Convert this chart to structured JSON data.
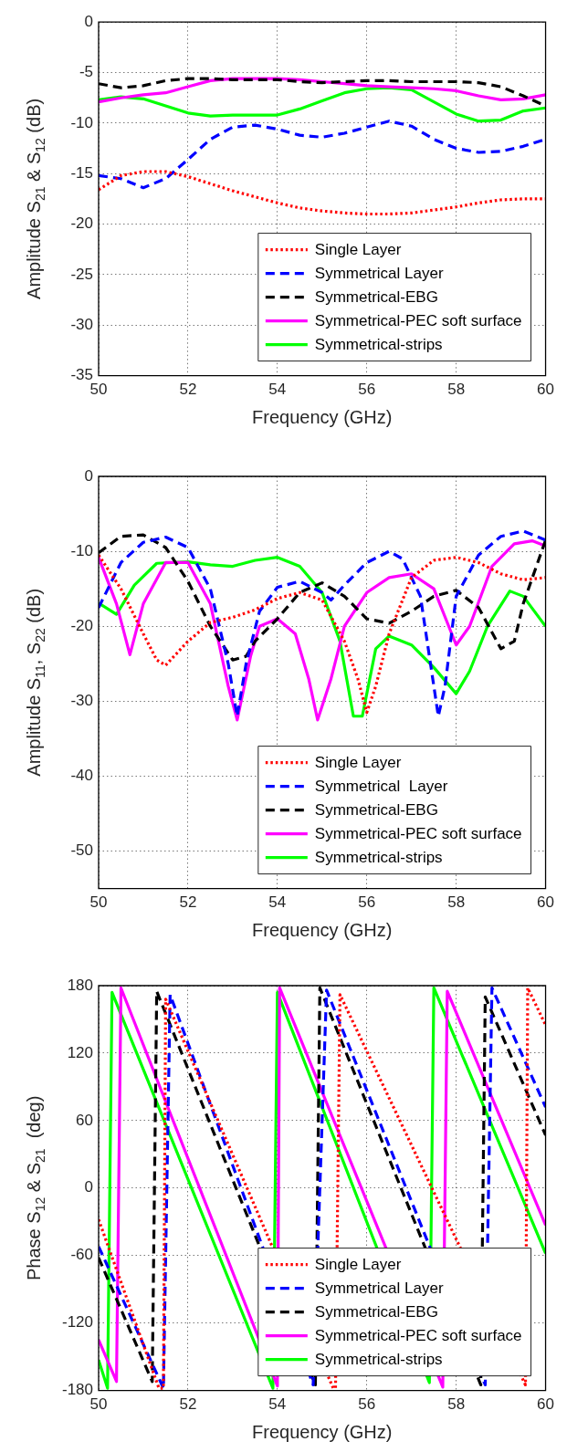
{
  "chart_data": [
    {
      "type": "line",
      "xlabel": "Frequency (GHz)",
      "ylabel": "Amplitude S$_{21}$ & S$_{12}$ (dB)",
      "xlim": [
        50,
        60
      ],
      "xticks": [
        50,
        52,
        54,
        56,
        58,
        60
      ],
      "ylim": [
        -35,
        0
      ],
      "yticks": [
        -35,
        -30,
        -25,
        -20,
        -15,
        -10,
        -5,
        0
      ],
      "grid": true,
      "legend": "bottom right",
      "x": [
        50,
        50.5,
        51,
        51.5,
        52,
        52.5,
        53,
        53.5,
        54,
        54.5,
        55,
        55.5,
        56,
        56.5,
        57,
        57.5,
        58,
        58.5,
        59,
        59.5,
        60
      ],
      "series": [
        {
          "name": "Single Layer",
          "color": "#ff0000",
          "line_style": "dotted",
          "values": [
            -16.6,
            -15.2,
            -14.8,
            -14.8,
            -15.3,
            -16,
            -16.7,
            -17.3,
            -17.9,
            -18.4,
            -18.7,
            -18.9,
            -19,
            -19,
            -18.9,
            -18.6,
            -18.3,
            -17.9,
            -17.6,
            -17.5,
            -17.5
          ]
        },
        {
          "name": "Symmetrical Layer",
          "color": "#0000ff",
          "line_style": "dashed",
          "values": [
            -15.2,
            -15.5,
            -16.4,
            -15.5,
            -13.6,
            -11.6,
            -10.4,
            -10.2,
            -10.6,
            -11.2,
            -11.4,
            -11,
            -10.4,
            -9.8,
            -10.3,
            -11.6,
            -12.5,
            -12.9,
            -12.8,
            -12.3,
            -11.6
          ]
        },
        {
          "name": "Symmetrical-EBG",
          "color": "#000000",
          "line_style": "dashed",
          "values": [
            -6.1,
            -6.5,
            -6.3,
            -5.8,
            -5.6,
            -5.6,
            -5.7,
            -5.7,
            -5.7,
            -5.9,
            -6,
            -5.9,
            -5.8,
            -5.8,
            -5.9,
            -5.9,
            -5.9,
            -6,
            -6.4,
            -7.3,
            -8.3
          ]
        },
        {
          "name": "Symmetrical-PEC soft surface",
          "color": "#ff00ff",
          "line_style": "solid",
          "values": [
            -7.9,
            -7.5,
            -7.2,
            -7,
            -6.4,
            -5.8,
            -5.6,
            -5.6,
            -5.6,
            -5.7,
            -5.9,
            -6.1,
            -6.3,
            -6.4,
            -6.5,
            -6.6,
            -6.8,
            -7.3,
            -7.7,
            -7.6,
            -7.2
          ]
        },
        {
          "name": "Symmetrical-strips",
          "color": "#00ff00",
          "line_style": "solid",
          "values": [
            -7.7,
            -7.4,
            -7.6,
            -8.3,
            -9,
            -9.3,
            -9.2,
            -9.2,
            -9.2,
            -8.6,
            -7.8,
            -7,
            -6.6,
            -6.5,
            -6.7,
            -7.9,
            -9.1,
            -9.8,
            -9.7,
            -8.8,
            -8.5
          ]
        }
      ]
    },
    {
      "type": "line",
      "xlabel": "Frequency (GHz)",
      "ylabel": "Amplitude S$_{11}$, S$_{22}$ (dB)",
      "xlim": [
        50,
        60
      ],
      "xticks": [
        50,
        52,
        54,
        56,
        58,
        60
      ],
      "ylim": [
        -55,
        0
      ],
      "yticks": [
        -50,
        -40,
        -30,
        -20,
        -10,
        0
      ],
      "grid": true,
      "legend": "bottom right",
      "series": [
        {
          "name": "Single Layer",
          "color": "#ff0000",
          "line_style": "dotted",
          "x": [
            50,
            50.5,
            51,
            51.3,
            51.5,
            52,
            52.5,
            53,
            53.5,
            54,
            54.5,
            55,
            55.5,
            55.8,
            56,
            56.2,
            56.5,
            57,
            57.5,
            58,
            58.5,
            59,
            59.5,
            60
          ],
          "values": [
            -10.5,
            -15,
            -21,
            -24.5,
            -25.2,
            -22,
            -19.5,
            -18.8,
            -17.8,
            -16.3,
            -15.5,
            -16.5,
            -22,
            -27,
            -31.5,
            -28,
            -21,
            -13.5,
            -11.2,
            -10.8,
            -11.5,
            -13,
            -13.8,
            -13.5
          ]
        },
        {
          "name": "Symmetrical  Layer",
          "color": "#0000ff",
          "line_style": "dashed",
          "x": [
            50,
            50.5,
            51,
            51.5,
            52,
            52.5,
            52.9,
            53.1,
            53.3,
            53.6,
            54,
            54.5,
            55,
            55.2,
            55.5,
            56,
            56.5,
            56.8,
            57.2,
            57.5,
            57.6,
            57.75,
            58,
            58.5,
            59,
            59.5,
            60
          ],
          "values": [
            -17.5,
            -11.5,
            -8.8,
            -8.1,
            -9.5,
            -15,
            -25,
            -32,
            -25,
            -18,
            -14.8,
            -14,
            -15.5,
            -16.5,
            -14.5,
            -11.5,
            -10,
            -11,
            -16,
            -28,
            -32,
            -28,
            -16,
            -10.5,
            -8,
            -7.3,
            -8.5
          ]
        },
        {
          "name": "Symmetrical-EBG",
          "color": "#000000",
          "line_style": "dashed",
          "x": [
            50,
            50.5,
            51,
            51.5,
            52,
            52.5,
            53,
            53.3,
            53.5,
            54,
            54.5,
            55,
            55.5,
            56,
            56.5,
            57,
            57.5,
            58,
            58.5,
            59,
            59.3,
            59.5,
            60
          ],
          "values": [
            -10.2,
            -8,
            -7.8,
            -9.5,
            -14,
            -20,
            -24.5,
            -24,
            -22,
            -19,
            -15.5,
            -14.2,
            -16,
            -19,
            -19.6,
            -18,
            -16,
            -15.2,
            -17.5,
            -23,
            -22,
            -17,
            -8.5
          ]
        },
        {
          "name": "Symmetrical-PEC soft surface",
          "color": "#ff00ff",
          "line_style": "solid",
          "x": [
            50,
            50.4,
            50.7,
            51,
            51.5,
            52,
            52.5,
            52.9,
            53.1,
            53.4,
            53.6,
            54,
            54.4,
            54.7,
            54.9,
            55.2,
            55.5,
            56,
            56.5,
            57,
            57.5,
            58,
            58.3,
            58.8,
            59.3,
            59.7,
            60
          ],
          "values": [
            -10.8,
            -17,
            -23.8,
            -17,
            -11.5,
            -11.5,
            -17,
            -28,
            -32.5,
            -24,
            -20,
            -19,
            -21,
            -27,
            -32.5,
            -27,
            -20,
            -15.5,
            -13.5,
            -13,
            -15,
            -22.5,
            -20,
            -12,
            -9,
            -8.6,
            -9.3
          ]
        },
        {
          "name": "Symmetrical-strips",
          "color": "#00ff00",
          "line_style": "solid",
          "x": [
            50,
            50.4,
            50.8,
            51.3,
            52,
            52.5,
            53,
            53.5,
            54,
            54.5,
            55,
            55.4,
            55.7,
            55.9,
            56.2,
            56.5,
            57,
            57.5,
            58,
            58.3,
            58.7,
            59.2,
            59.5,
            60
          ],
          "values": [
            -16.9,
            -18.4,
            -14.5,
            -11.6,
            -11.4,
            -11.8,
            -12,
            -11.2,
            -10.8,
            -12,
            -15.5,
            -22,
            -32,
            -32,
            -23,
            -21.3,
            -22.5,
            -25.5,
            -29,
            -26,
            -20,
            -15.3,
            -16,
            -20
          ]
        }
      ]
    },
    {
      "type": "line",
      "xlabel": "Frequency (GHz)",
      "ylabel": "Phase S$_{12}$ & S$_{21}$  (deg)",
      "xlim": [
        50,
        60
      ],
      "xticks": [
        50,
        52,
        54,
        56,
        58,
        60
      ],
      "ylim": [
        -180,
        180
      ],
      "yticks": [
        -180,
        -120,
        -60,
        0,
        60,
        120,
        180
      ],
      "grid": true,
      "legend": "bottom right",
      "series": [
        {
          "name": "Single Layer",
          "color": "#ff0000",
          "line_style": "dotted",
          "x": [
            50,
            51.35,
            51.45,
            51.5,
            55.25,
            55.3,
            55.4,
            59.55,
            59.6,
            60
          ],
          "values": [
            -28,
            -178,
            -178,
            168,
            -178,
            -178,
            172,
            -175,
            178,
            145
          ]
        },
        {
          "name": "Symmetrical Layer",
          "color": "#0000ff",
          "line_style": "dashed",
          "x": [
            50,
            51.45,
            51.6,
            54.8,
            55.1,
            58.65,
            58.8,
            60
          ],
          "values": [
            -52,
            -178,
            172,
            -175,
            176,
            -175,
            178,
            72
          ]
        },
        {
          "name": "Symmetrical-EBG",
          "color": "#000000",
          "line_style": "dashed",
          "x": [
            50,
            51.2,
            51.3,
            54.85,
            54.95,
            58.55,
            58.65,
            60
          ],
          "values": [
            -62,
            -172,
            175,
            -175,
            178,
            -175,
            170,
            47
          ]
        },
        {
          "name": "Symmetrical-PEC soft surface",
          "color": "#ff00ff",
          "line_style": "solid",
          "x": [
            50,
            50.4,
            50.5,
            54,
            54.05,
            57.7,
            57.8,
            60
          ],
          "values": [
            -135,
            -172,
            178,
            -176,
            178,
            -177,
            175,
            -33
          ]
        },
        {
          "name": "Symmetrical-strips",
          "color": "#00ff00",
          "line_style": "solid",
          "x": [
            50,
            50.2,
            50.3,
            53.9,
            54,
            57.4,
            57.5,
            60
          ],
          "values": [
            -153,
            -178,
            174,
            -178,
            174,
            -173,
            178,
            -58
          ]
        }
      ]
    }
  ]
}
